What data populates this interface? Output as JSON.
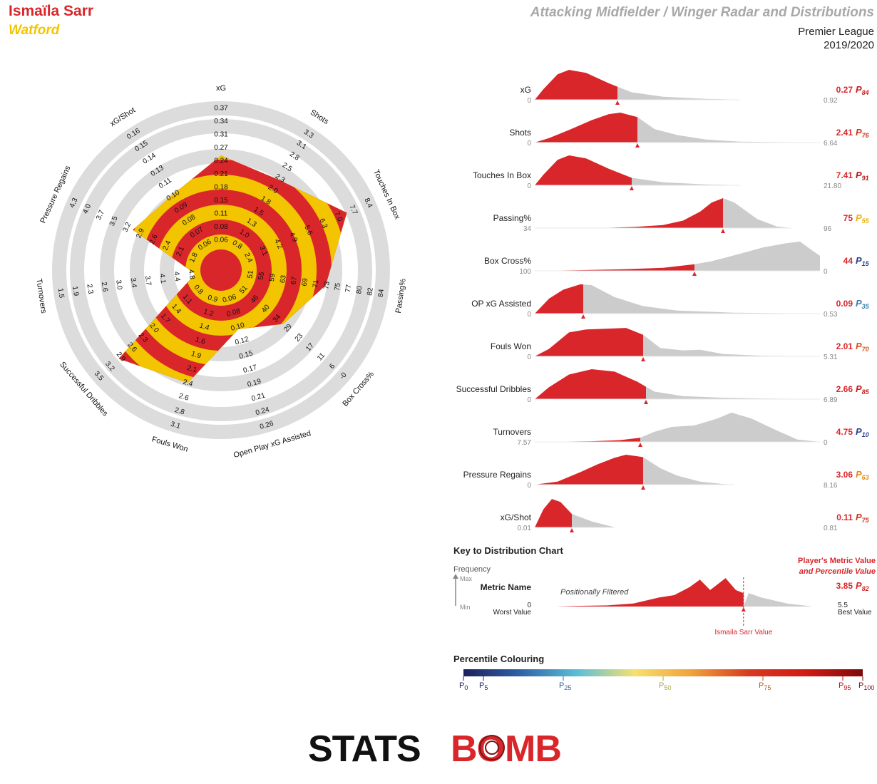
{
  "header": {
    "player": "Ismaïla Sarr",
    "team": "Watford",
    "title": "Attacking Midfielder / Winger Radar and Distributions",
    "league": "Premier League",
    "season": "2019/2020"
  },
  "colors": {
    "player": "#d9262b",
    "team": "#f2c500",
    "ring": "#dcdcdc",
    "dist_fill": "#d9262b",
    "dist_rest": "#cccccc",
    "percentile_scale": [
      "#1b1f5c",
      "#2f63a6",
      "#5bbfd6",
      "#f7e070",
      "#f0a23a",
      "#d63a21",
      "#d11a14",
      "#7d0a0a"
    ]
  },
  "chart_data": [
    {
      "type": "radar",
      "axes": [
        {
          "name": "xG",
          "ticks": [
            "0.06",
            "0.08",
            "0.11",
            "0.15",
            "0.18",
            "0.21",
            "0.24",
            "0.27",
            "0.31",
            "0.34",
            "0.37"
          ],
          "value": 0.27
        },
        {
          "name": "Shots",
          "ticks": [
            "0.8",
            "1.0",
            "1.3",
            "1.5",
            "1.8",
            "2.0",
            "2.3",
            "2.5",
            "2.8",
            "3.1",
            "3.3"
          ],
          "value": 2.41
        },
        {
          "name": "Touches In Box",
          "ticks": [
            "2.4",
            "3.1",
            "4.2",
            "4.9",
            "5.6",
            "6.3",
            "7.0",
            "7.7",
            "8.4"
          ],
          "value": 7.41
        },
        {
          "name": "Passing%",
          "ticks": [
            "51",
            "55",
            "59",
            "63",
            "67",
            "69",
            "71",
            "73",
            "75",
            "77",
            "80",
            "82",
            "84"
          ],
          "value": 75
        },
        {
          "name": "Box Cross%",
          "ticks": [
            "51",
            "46",
            "40",
            "34",
            "29",
            "23",
            "17",
            "11",
            "6",
            "-0"
          ],
          "value": 44
        },
        {
          "name": "Open Play xG Assisted",
          "ticks": [
            "0.06",
            "0.08",
            "0.10",
            "0.12",
            "0.15",
            "0.17",
            "0.19",
            "0.21",
            "0.24",
            "0.26"
          ],
          "value": 0.09
        },
        {
          "name": "Fouls Won",
          "ticks": [
            "0.9",
            "1.2",
            "1.4",
            "1.6",
            "1.9",
            "2.1",
            "2.4",
            "2.6",
            "2.8",
            "3.1"
          ],
          "value": 2.01
        },
        {
          "name": "Successful Dribbles",
          "ticks": [
            "0.8",
            "1.1",
            "1.4",
            "1.7",
            "2.0",
            "2.3",
            "2.6",
            "2.9",
            "3.2",
            "3.5"
          ],
          "value": 2.66
        },
        {
          "name": "Turnovers",
          "ticks": [
            "4.8",
            "4.4",
            "4.1",
            "3.7",
            "3.4",
            "3.0",
            "2.6",
            "2.3",
            "1.9",
            "1.5"
          ],
          "value": 4.75
        },
        {
          "name": "Pressure Regains",
          "ticks": [
            "1.8",
            "2.1",
            "2.4",
            "2.6",
            "2.9",
            "3.2",
            "3.5",
            "3.7",
            "4.0",
            "4.3"
          ],
          "value": 3.06
        },
        {
          "name": "xG/Shot",
          "ticks": [
            "0.06",
            "0.07",
            "0.08",
            "0.09",
            "0.10",
            "0.11",
            "0.13",
            "0.14",
            "0.15",
            "0.16"
          ],
          "value": 0.11
        }
      ],
      "player_polygon_percent": [
        0.68,
        0.63,
        0.84,
        0.62,
        0.46,
        0.32,
        0.7,
        0.82,
        0.08,
        0.56,
        0.51
      ]
    },
    {
      "type": "distribution",
      "metrics": [
        {
          "name": "xG",
          "min": "0",
          "max": "0.92",
          "value": "0.27",
          "percentile": "84",
          "pcolor": "#c81e1e",
          "pos": 0.29,
          "curve": "skewR"
        },
        {
          "name": "Shots",
          "min": "0",
          "max": "6.64",
          "value": "2.41",
          "percentile": "76",
          "pcolor": "#cc3a1e",
          "pos": 0.36,
          "curve": "skewR2"
        },
        {
          "name": "Touches In Box",
          "min": "0",
          "max": "21.80",
          "value": "7.41",
          "percentile": "91",
          "pcolor": "#b81818",
          "pos": 0.34,
          "curve": "skewR"
        },
        {
          "name": "Passing%",
          "min": "34",
          "max": "96",
          "value": "75",
          "percentile": "55",
          "pcolor": "#e6b117",
          "pos": 0.66,
          "curve": "skewL"
        },
        {
          "name": "Box Cross%",
          "min": "100",
          "max": "0",
          "value": "44",
          "percentile": "15",
          "pcolor": "#2a3f8f",
          "pos": 0.56,
          "curve": "rise"
        },
        {
          "name": "OP xG Assisted",
          "min": "0",
          "max": "0.53",
          "value": "0.09",
          "percentile": "35",
          "pcolor": "#3d7fb0",
          "pos": 0.17,
          "curve": "skewR3"
        },
        {
          "name": "Fouls Won",
          "min": "0",
          "max": "5.31",
          "value": "2.01",
          "percentile": "70",
          "pcolor": "#d6561f",
          "pos": 0.38,
          "curve": "plateau"
        },
        {
          "name": "Successful Dribbles",
          "min": "0",
          "max": "6.89",
          "value": "2.66",
          "percentile": "85",
          "pcolor": "#c81e1e",
          "pos": 0.39,
          "curve": "plateau2"
        },
        {
          "name": "Turnovers",
          "min": "7.57",
          "max": "0",
          "value": "4.75",
          "percentile": "10",
          "pcolor": "#2a3f8f",
          "pos": 0.37,
          "curve": "rise2"
        },
        {
          "name": "Pressure Regains",
          "min": "0",
          "max": "8.16",
          "value": "3.06",
          "percentile": "63",
          "pcolor": "#e08a1b",
          "pos": 0.38,
          "curve": "mid"
        },
        {
          "name": "xG/Shot",
          "min": "0.01",
          "max": "0.81",
          "value": "0.11",
          "percentile": "75",
          "pcolor": "#cc3a1e",
          "pos": 0.13,
          "curve": "narrow"
        }
      ]
    }
  ],
  "key": {
    "title": "Key to Distribution Chart",
    "frequency": "Frequency",
    "max": "Max",
    "min": "Min",
    "metric": "Metric Name",
    "filtered": "Positionally Filtered",
    "worst_value": "0",
    "worst_label": "Worst Value",
    "best_value": "5.5",
    "best_label": "Best Value",
    "player_metric_1": "Player's Metric Value",
    "player_metric_2": "and Percentile Value",
    "example_value": "3.85",
    "example_percentile": "82",
    "marker_label": "Ismaila Sarr Value"
  },
  "percentile_colouring": {
    "title": "Percentile Colouring",
    "ticks": [
      {
        "label": "0",
        "pos": 0.0,
        "color": "#1b1f5c"
      },
      {
        "label": "5",
        "pos": 0.05,
        "color": "#1b2a6b"
      },
      {
        "label": "25",
        "pos": 0.25,
        "color": "#2f63a6"
      },
      {
        "label": "50",
        "pos": 0.5,
        "color": "#a6a84a"
      },
      {
        "label": "75",
        "pos": 0.75,
        "color": "#b85a1e"
      },
      {
        "label": "95",
        "pos": 0.95,
        "color": "#b21414"
      },
      {
        "label": "100",
        "pos": 1.0,
        "color": "#7d0a0a"
      }
    ]
  },
  "logo": {
    "text_1": "STATS",
    "text_2": "BOMB"
  }
}
